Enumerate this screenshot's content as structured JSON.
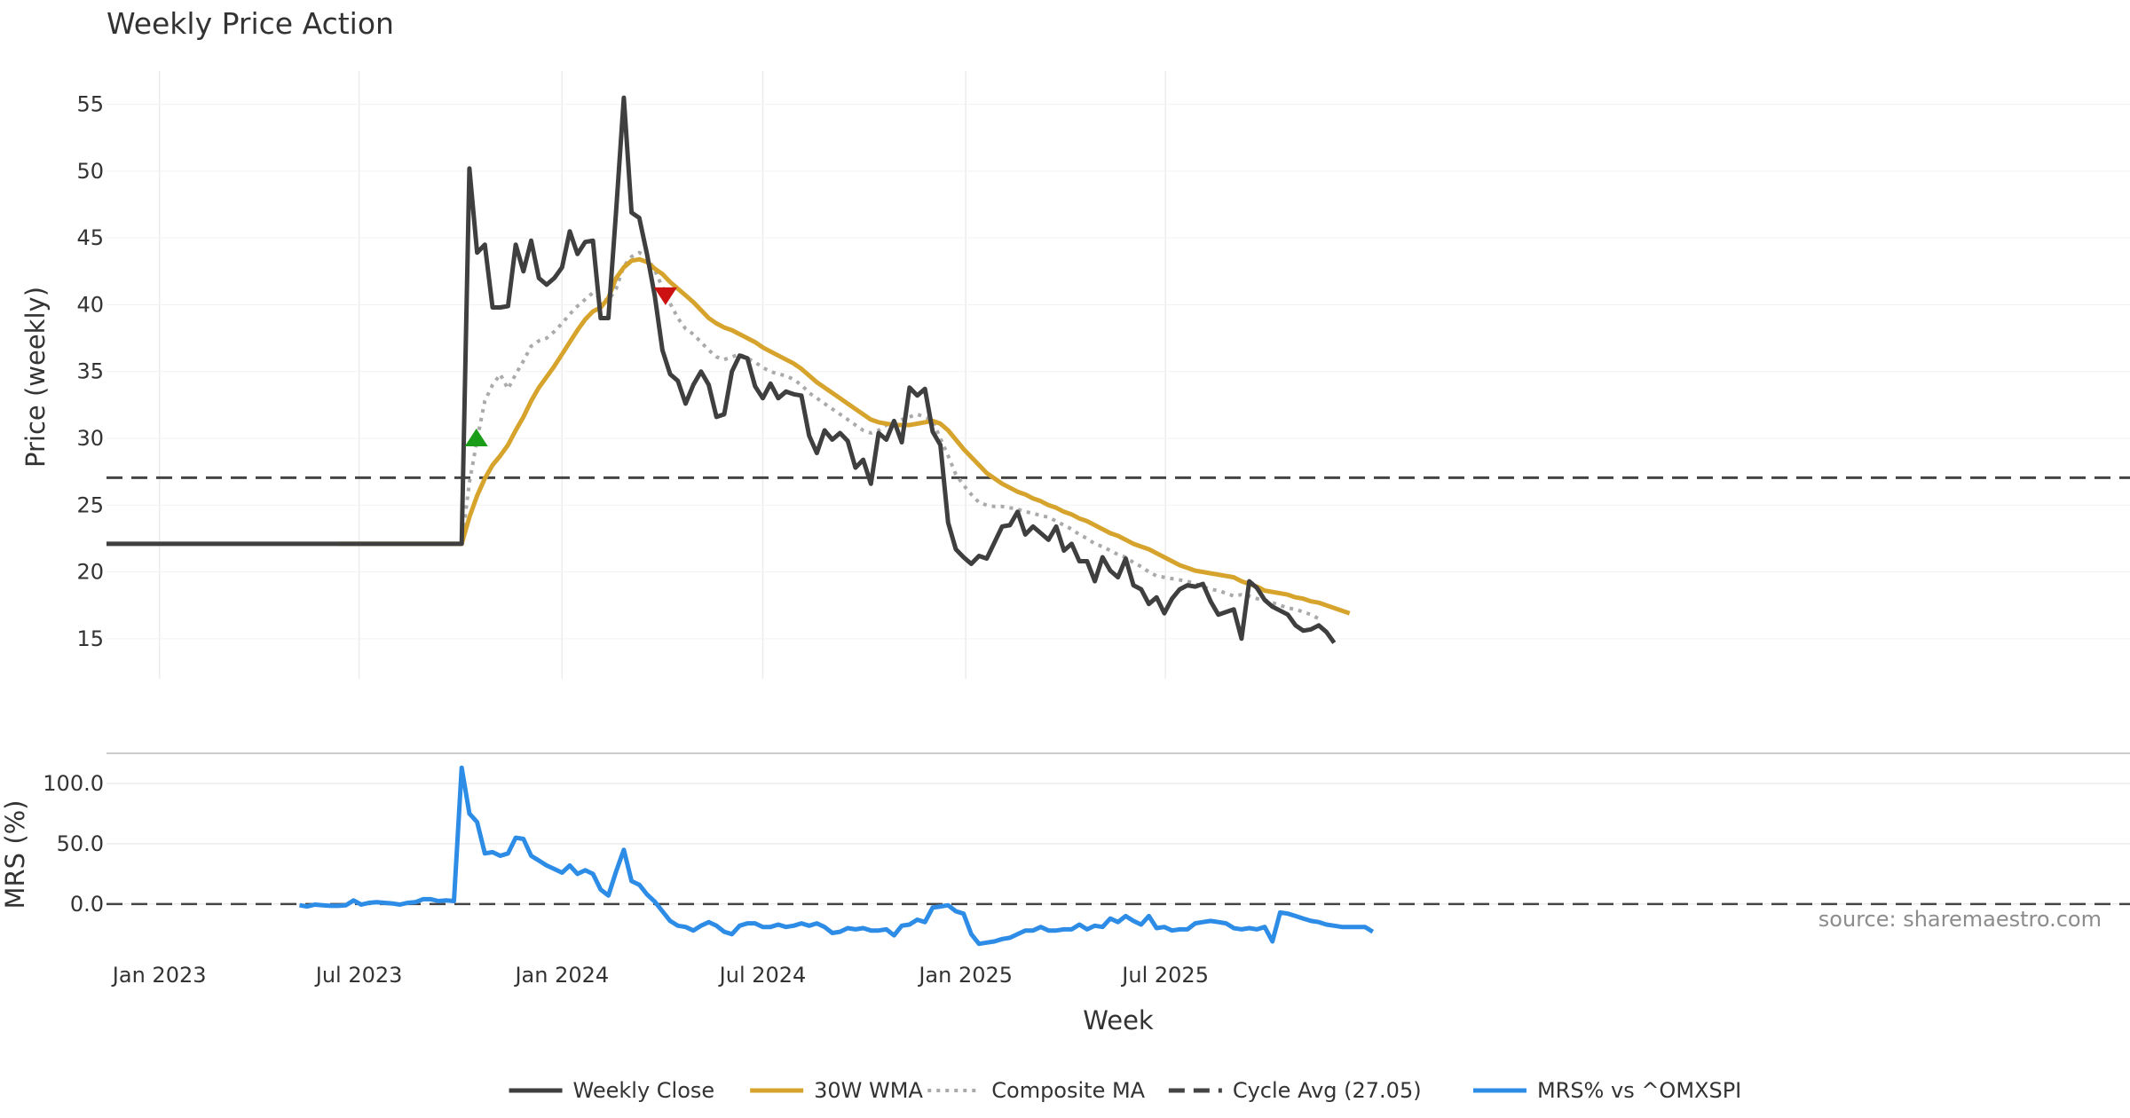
{
  "chart_data": {
    "type": "line",
    "title": "Weekly Price Action",
    "xlabel": "Week",
    "source": "source: sharemaestro.com",
    "x_ticks": [
      {
        "date": "2023-01-01",
        "label": "Jan 2023"
      },
      {
        "date": "2023-07-01",
        "label": "Jul 2023"
      },
      {
        "date": "2024-01-01",
        "label": "Jan 2024"
      },
      {
        "date": "2024-07-01",
        "label": "Jul 2024"
      },
      {
        "date": "2025-01-01",
        "label": "Jan 2025"
      },
      {
        "date": "2025-07-01",
        "label": "Jul 2025"
      }
    ],
    "x_start": "2022-11-14",
    "week_interval_days": 7,
    "price_panel": {
      "ylabel": "Price (weekly)",
      "ylim": [
        12,
        57.5
      ],
      "yticks": [
        15,
        20,
        25,
        30,
        35,
        40,
        45,
        50,
        55
      ],
      "series": [
        {
          "name": "Weekly Close",
          "color": "#3f3f3f",
          "style": "solid",
          "start_week": 0,
          "values": [
            22.1,
            22.1,
            22.1,
            22.1,
            22.1,
            22.1,
            22.1,
            22.1,
            22.1,
            22.1,
            22.1,
            22.1,
            22.1,
            22.1,
            22.1,
            22.1,
            22.1,
            22.1,
            22.1,
            22.1,
            22.1,
            22.1,
            22.1,
            22.1,
            22.1,
            22.1,
            22.1,
            22.1,
            22.1,
            22.1,
            22.1,
            22.1,
            22.1,
            22.1,
            22.1,
            22.1,
            22.1,
            22.1,
            22.1,
            22.1,
            22.1,
            22.1,
            22.1,
            22.1,
            22.1,
            22.1,
            22.1,
            50.2,
            43.9,
            44.5,
            39.8,
            39.8,
            39.9,
            44.5,
            42.5,
            44.8,
            42.0,
            41.5,
            42.0,
            42.8,
            45.5,
            43.8,
            44.7,
            44.8,
            39.0,
            39.0,
            47.0,
            55.5,
            46.9,
            46.5,
            43.8,
            40.7,
            36.6,
            34.8,
            34.3,
            32.6,
            34.0,
            35.0,
            34.0,
            31.6,
            31.8,
            35.0,
            36.2,
            36.0,
            33.9,
            33.0,
            34.1,
            33.0,
            33.5,
            33.3,
            33.2,
            30.2,
            28.9,
            30.6,
            29.9,
            30.4,
            29.8,
            27.8,
            28.4,
            26.6,
            30.4,
            29.9,
            31.3,
            29.7,
            33.8,
            33.2,
            33.7,
            30.5,
            29.5,
            23.7,
            21.7,
            21.1,
            20.6,
            21.2,
            21.0,
            22.2,
            23.4,
            23.5,
            24.5,
            22.8,
            23.4,
            22.9,
            22.4,
            23.4,
            21.6,
            22.1,
            20.8,
            20.8,
            19.3,
            21.1,
            20.1,
            19.6,
            21.0,
            19.0,
            18.7,
            17.6,
            18.1,
            16.9,
            18.0,
            18.7,
            19.0,
            18.9,
            19.1,
            17.8,
            16.8,
            17.0,
            17.2,
            15.0,
            19.3,
            18.8,
            17.9,
            17.4,
            17.1,
            16.8,
            16.0,
            15.6,
            15.7,
            16.0,
            15.5,
            14.7
          ]
        },
        {
          "name": "30W WMA",
          "color": "#d6a42c",
          "style": "solid",
          "start_week": 30,
          "values": [
            22.1,
            22.1,
            22.1,
            22.1,
            22.1,
            22.1,
            22.1,
            22.1,
            22.1,
            22.1,
            22.1,
            22.1,
            22.1,
            22.1,
            22.1,
            22.1,
            22.1,
            24.1,
            25.7,
            27.0,
            28.0,
            28.7,
            29.5,
            30.6,
            31.6,
            32.8,
            33.8,
            34.6,
            35.4,
            36.3,
            37.2,
            38.1,
            38.9,
            39.5,
            39.8,
            40.5,
            42.0,
            42.8,
            43.3,
            43.4,
            43.2,
            42.7,
            42.3,
            41.7,
            41.2,
            40.7,
            40.2,
            39.6,
            39.0,
            38.6,
            38.3,
            38.1,
            37.8,
            37.5,
            37.2,
            36.8,
            36.5,
            36.2,
            35.9,
            35.6,
            35.2,
            34.7,
            34.2,
            33.8,
            33.4,
            33.0,
            32.6,
            32.2,
            31.8,
            31.4,
            31.2,
            31.1,
            31.0,
            31.0,
            31.0,
            31.1,
            31.2,
            31.3,
            31.1,
            30.6,
            29.9,
            29.2,
            28.6,
            28.0,
            27.4,
            27.0,
            26.6,
            26.3,
            26.0,
            25.8,
            25.5,
            25.3,
            25.0,
            24.8,
            24.5,
            24.3,
            24.0,
            23.8,
            23.5,
            23.2,
            22.9,
            22.7,
            22.4,
            22.1,
            21.9,
            21.7,
            21.4,
            21.1,
            20.8,
            20.5,
            20.3,
            20.1,
            20.0,
            19.9,
            19.8,
            19.7,
            19.6,
            19.3,
            19.1,
            18.9,
            18.6,
            18.5,
            18.4,
            18.3,
            18.1,
            18.0,
            17.8,
            17.7,
            17.5,
            17.3,
            17.1,
            16.9
          ]
        },
        {
          "name": "Composite MA",
          "color": "#aaaaaa",
          "style": "dotted",
          "start_week": 0,
          "values": [
            22.1,
            22.1,
            22.1,
            22.1,
            22.1,
            22.1,
            22.1,
            22.1,
            22.1,
            22.1,
            22.1,
            22.1,
            22.1,
            22.1,
            22.1,
            22.1,
            22.1,
            22.1,
            22.1,
            22.1,
            22.1,
            22.1,
            22.1,
            22.1,
            22.1,
            22.1,
            22.1,
            22.1,
            22.1,
            22.1,
            22.1,
            22.1,
            22.1,
            22.1,
            22.1,
            22.1,
            22.1,
            22.1,
            22.1,
            22.1,
            22.1,
            22.1,
            22.1,
            22.1,
            22.1,
            22.1,
            22.1,
            26.7,
            29.9,
            32.8,
            34.0,
            34.8,
            33.7,
            34.8,
            35.8,
            36.9,
            37.3,
            37.5,
            38.0,
            38.6,
            39.3,
            39.9,
            40.4,
            40.9,
            40.5,
            40.3,
            41.2,
            42.9,
            43.6,
            43.9,
            43.6,
            42.6,
            41.3,
            40.1,
            39.0,
            38.2,
            37.8,
            37.2,
            36.6,
            36.1,
            35.9,
            36.1,
            36.3,
            36.0,
            35.7,
            35.3,
            35.0,
            34.8,
            34.7,
            34.4,
            34.0,
            33.4,
            33.0,
            32.6,
            32.2,
            31.8,
            31.4,
            31.0,
            30.6,
            30.4,
            30.6,
            31.0,
            31.2,
            31.4,
            31.6,
            31.8,
            31.6,
            31.3,
            30.0,
            28.7,
            27.3,
            26.5,
            25.8,
            25.2,
            25.0,
            24.9,
            24.9,
            24.8,
            24.7,
            24.5,
            24.4,
            24.2,
            24.1,
            23.8,
            23.5,
            23.2,
            22.8,
            22.5,
            22.1,
            21.9,
            21.6,
            21.3,
            21.1,
            20.7,
            20.4,
            20.0,
            19.7,
            19.6,
            19.5,
            19.4,
            19.3,
            19.1,
            18.9,
            18.7,
            18.6,
            18.4,
            18.2,
            18.3,
            18.2,
            18.0,
            17.9,
            17.7,
            17.5,
            17.3,
            17.2,
            17.0,
            16.8,
            16.5
          ]
        }
      ],
      "cycle_avg": {
        "name": "Cycle Avg (27.05)",
        "value": 27.05,
        "color": "#444444",
        "style": "dashed"
      },
      "markers": [
        {
          "type": "buy",
          "week": 47.9,
          "value": 30.0,
          "color": "#1a9e1a"
        },
        {
          "type": "sell",
          "week": 72.4,
          "value": 40.7,
          "color": "#cc1111"
        }
      ]
    },
    "mrs_panel": {
      "ylabel": "MRS (%)",
      "ylim": [
        -45,
        125
      ],
      "yticks": [
        {
          "value": 0,
          "label": "0.0"
        },
        {
          "value": 50,
          "label": "50.0"
        },
        {
          "value": 100,
          "label": "100.0"
        }
      ],
      "zero_line": {
        "value": 0,
        "color": "#444444",
        "style": "dashed"
      },
      "series": [
        {
          "name": "MRS% vs ^OMXSPI",
          "color": "#2d8ce6",
          "style": "solid",
          "start_week": 25,
          "values": [
            -1.0,
            -2.0,
            -0.5,
            -1.0,
            -1.5,
            -1.5,
            -1.0,
            3.0,
            -0.5,
            1.0,
            1.5,
            1.0,
            0.5,
            -0.5,
            1.0,
            1.5,
            4.0,
            4.0,
            2.5,
            3.0,
            2.5,
            113.0,
            75.0,
            68.0,
            42.0,
            43.0,
            40.0,
            42.0,
            55.0,
            54.0,
            40.0,
            36.0,
            32.0,
            29.0,
            26.0,
            32.0,
            25.0,
            28.0,
            25.0,
            12.0,
            7.0,
            27.0,
            45.0,
            19.0,
            16.0,
            8.0,
            2.0,
            -6.0,
            -14.0,
            -18.0,
            -19.0,
            -22.0,
            -18.0,
            -15.0,
            -18.0,
            -23.0,
            -25.0,
            -18.0,
            -16.0,
            -16.0,
            -19.0,
            -19.0,
            -17.0,
            -19.0,
            -18.0,
            -16.0,
            -18.0,
            -16.0,
            -19.0,
            -24.0,
            -23.0,
            -20.0,
            -21.0,
            -20.0,
            -22.0,
            -22.0,
            -21.0,
            -26.0,
            -18.0,
            -17.0,
            -13.0,
            -15.0,
            -3.0,
            -2.0,
            -1.0,
            -6.0,
            -8.0,
            -25.0,
            -33.0,
            -32.0,
            -31.0,
            -29.0,
            -28.0,
            -25.0,
            -22.0,
            -22.0,
            -19.0,
            -22.0,
            -22.0,
            -21.0,
            -21.0,
            -17.0,
            -21.0,
            -18.0,
            -19.0,
            -12.0,
            -15.0,
            -10.0,
            -14.0,
            -17.0,
            -10.0,
            -20.0,
            -19.0,
            -22.0,
            -21.0,
            -21.0,
            -16.0,
            -15.0,
            -14.0,
            -15.0,
            -16.0,
            -20.0,
            -21.0,
            -20.0,
            -21.0,
            -19.0,
            -31.0,
            -7.0,
            -8.0,
            -10.0,
            -12.0,
            -14.0,
            -15.0,
            -17.0,
            -18.0,
            -19.0,
            -19.0,
            -19.0,
            -19.0,
            -23.0
          ]
        }
      ]
    },
    "legend": [
      {
        "name": "Weekly Close",
        "color": "#3f3f3f",
        "style": "solid"
      },
      {
        "name": "30W WMA",
        "color": "#d6a42c",
        "style": "solid"
      },
      {
        "name": "Composite MA",
        "color": "#aaaaaa",
        "style": "dotted"
      },
      {
        "name": "Cycle Avg (27.05)",
        "color": "#444444",
        "style": "dashed"
      },
      {
        "name": "MRS% vs ^OMXSPI",
        "color": "#2d8ce6",
        "style": "solid"
      }
    ]
  }
}
